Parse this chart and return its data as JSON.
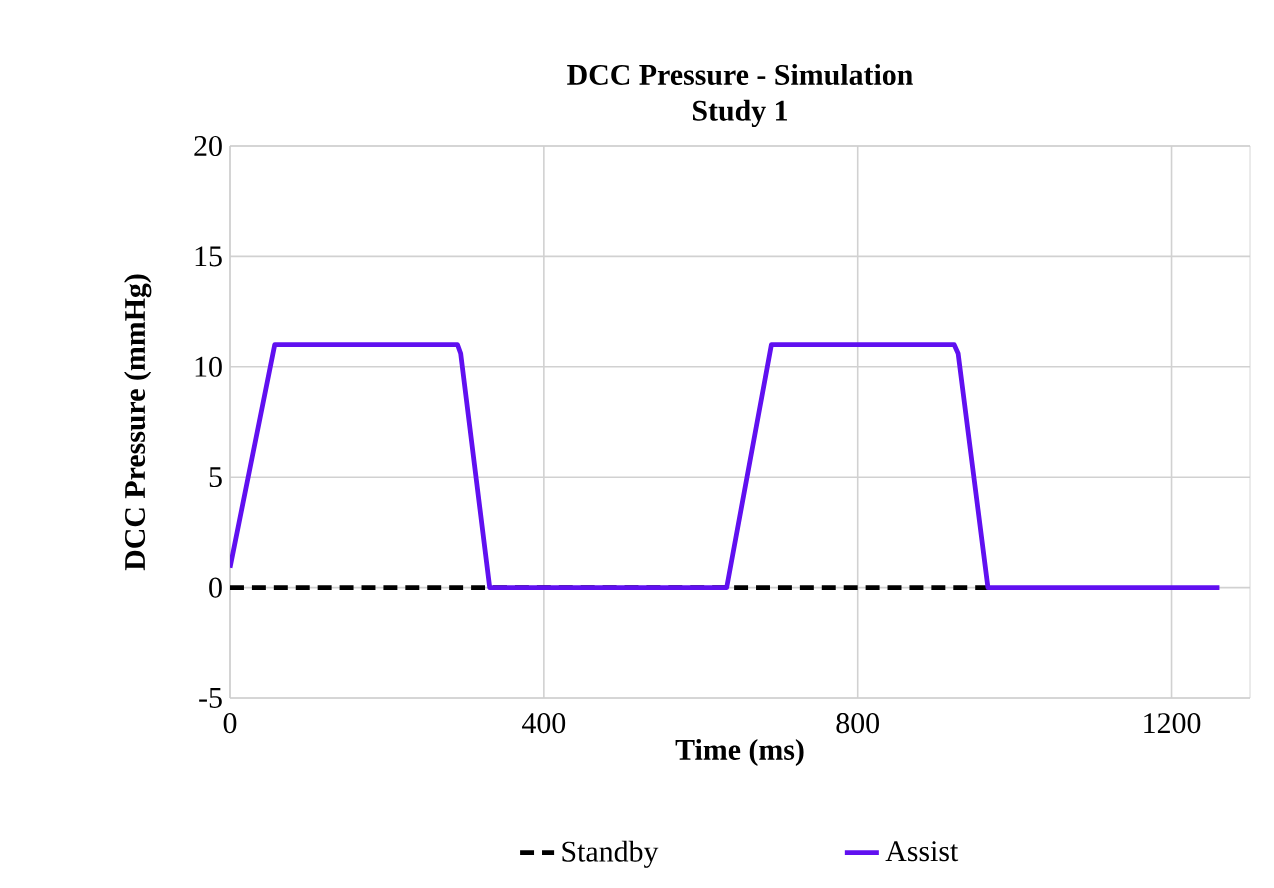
{
  "chart_data": {
    "type": "line",
    "title": "DCC Pressure - Simulation\nStudy 1",
    "xlabel": "Time (ms)",
    "ylabel": "DCC Pressure (mmHg)",
    "xlim": [
      0,
      1300
    ],
    "xticks": [
      0,
      400,
      800,
      1200
    ],
    "ylim": [
      -5,
      20
    ],
    "yticks": [
      -5,
      0,
      5,
      10,
      15,
      20
    ],
    "grid": true,
    "legend": "bottom",
    "series": [
      {
        "name": "Standby",
        "color": "#000000",
        "line_style": "dashed",
        "x": [
          0,
          966
        ],
        "values": [
          0,
          0
        ]
      },
      {
        "name": "Assist",
        "color": "#6010f0",
        "line_style": "solid",
        "x": [
          0,
          57,
          290,
          294,
          331,
          633,
          690,
          923,
          928,
          966,
          1261
        ],
        "values": [
          0.9,
          11,
          11,
          10.6,
          0,
          0,
          11,
          11,
          10.6,
          0,
          0
        ]
      }
    ]
  }
}
